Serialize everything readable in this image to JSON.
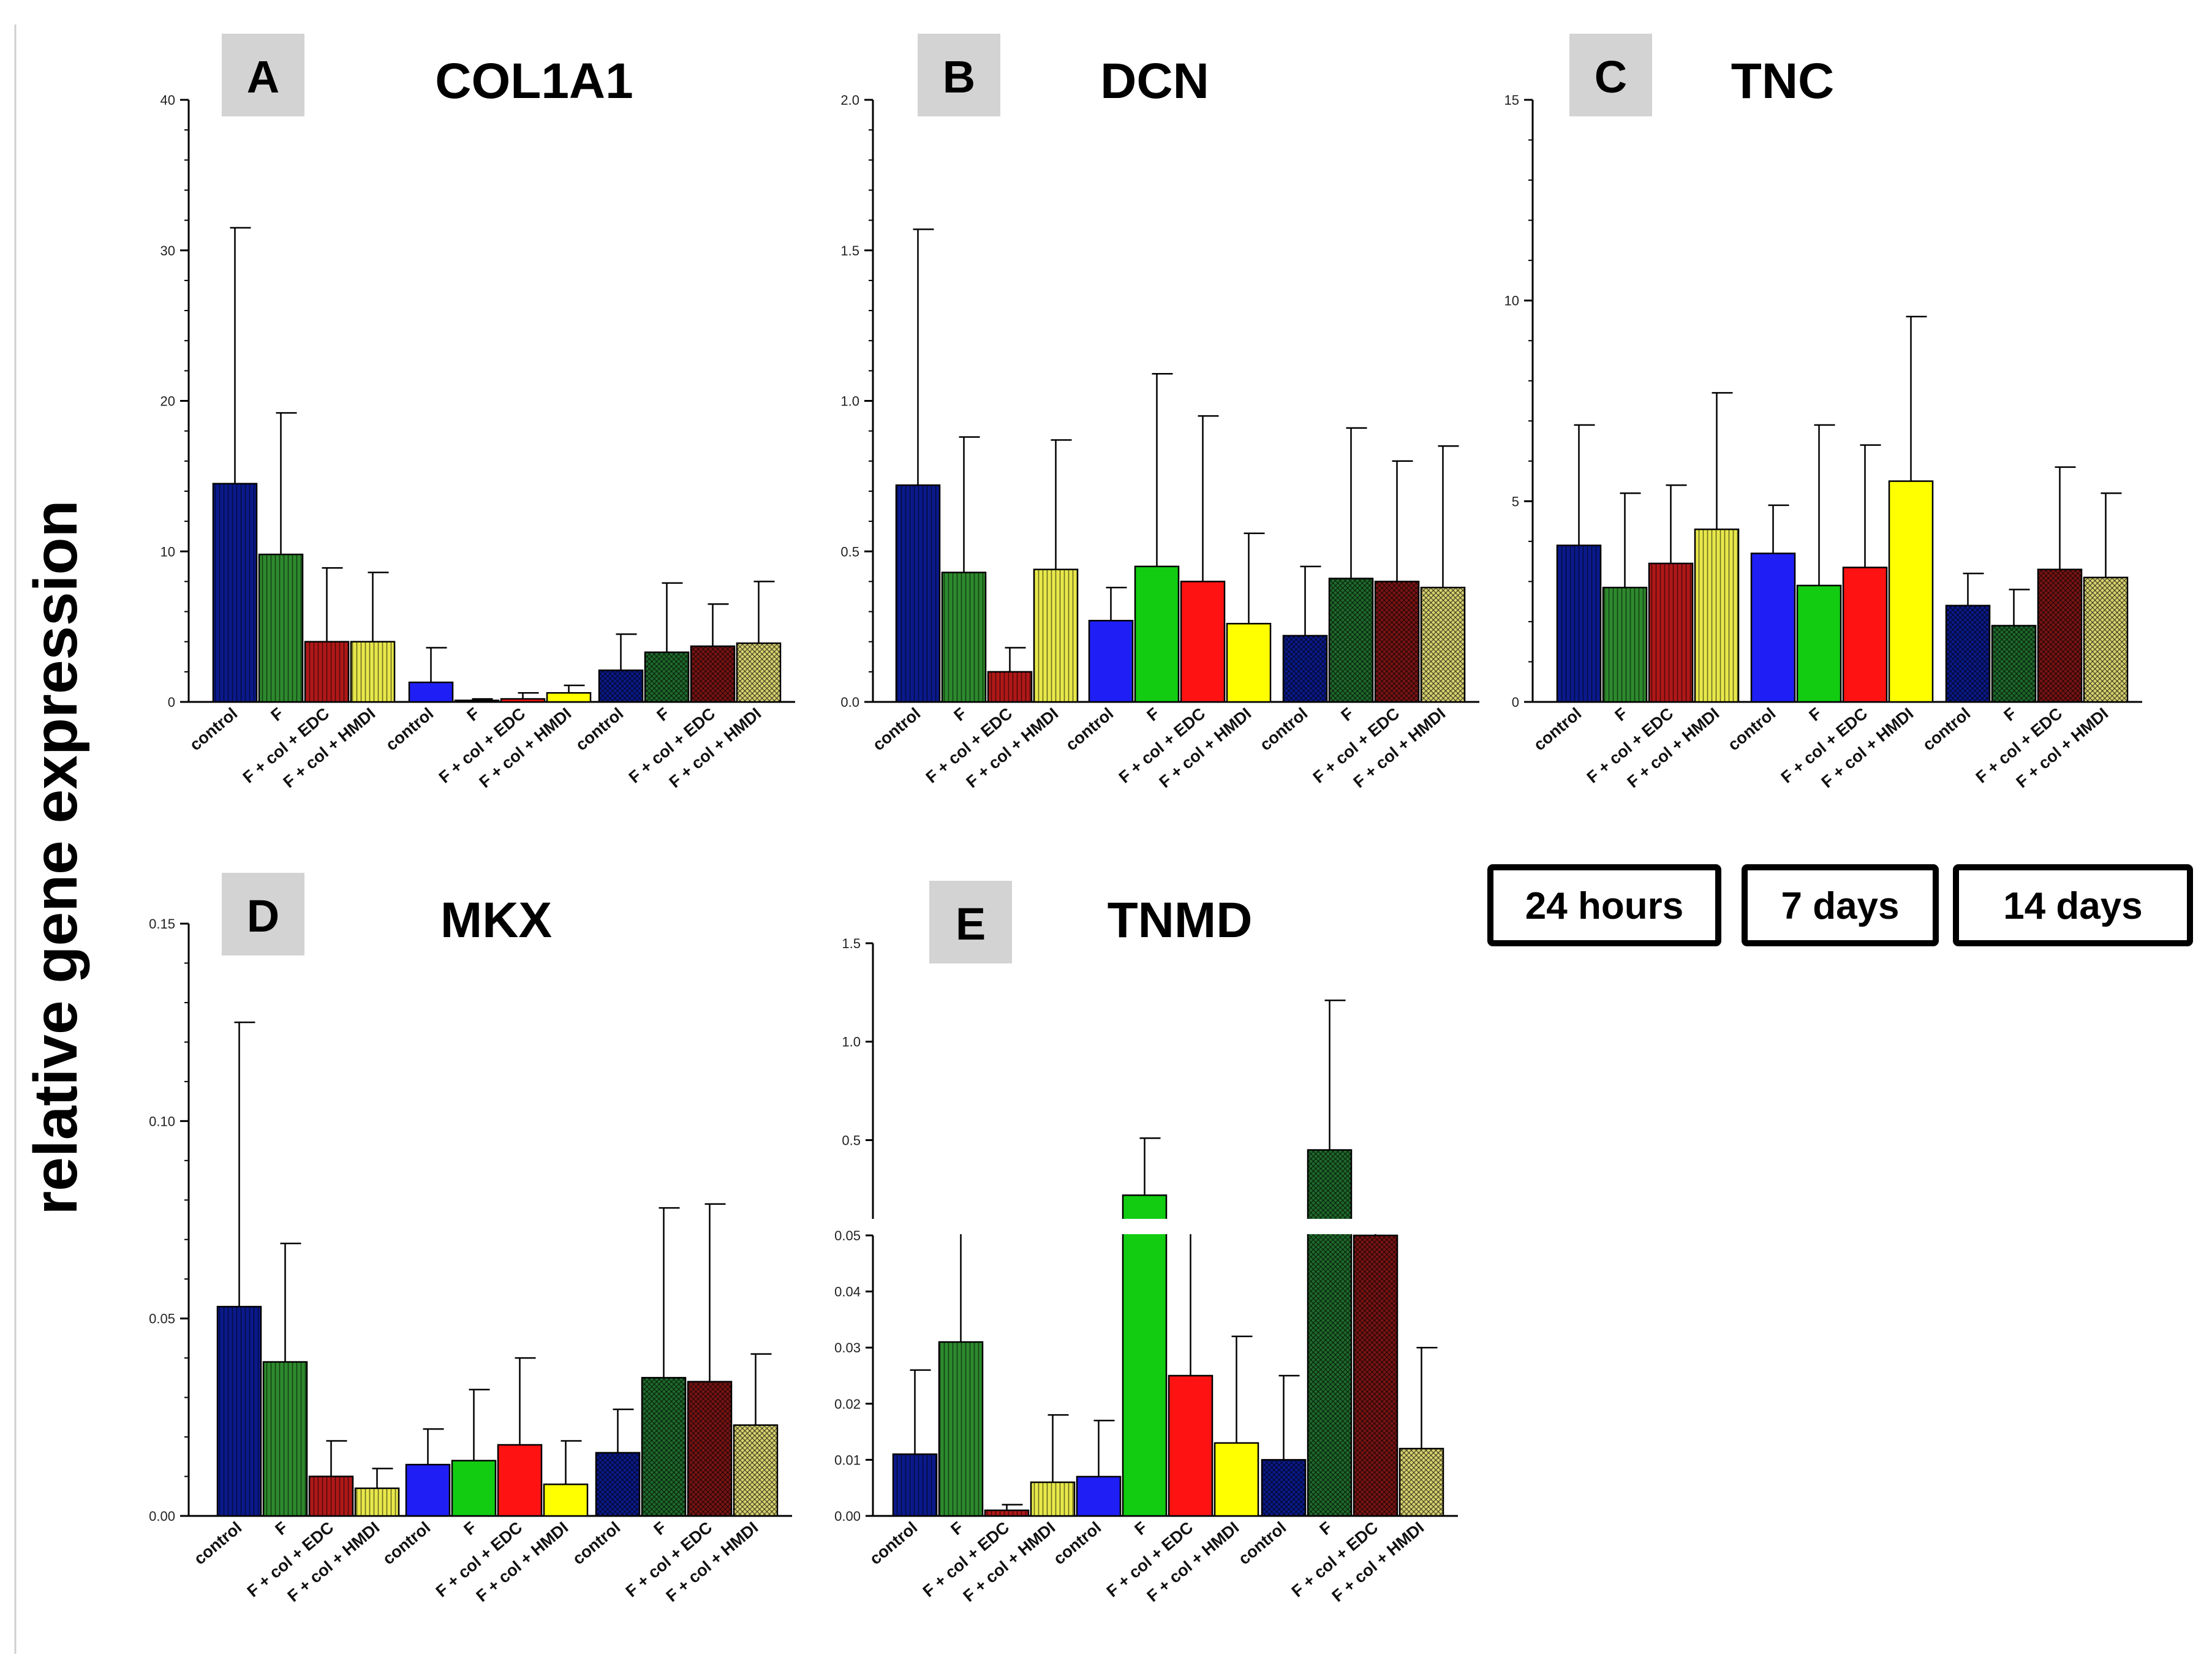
{
  "figure": {
    "ylabel": "relative gene expression",
    "time_legend": [
      "24 hours",
      "7 days",
      "14 days"
    ]
  },
  "colors": {
    "control": "#0a1a8c",
    "F": "#2d8a2d",
    "EDC": "#b01818",
    "HMDI": "#e8e84a",
    "control_7d": "#1f1ff5",
    "F_7d": "#11cc11",
    "EDC_7d": "#ff1212",
    "HMDI_7d": "#ffff00",
    "control_14d": "#0a1a8c",
    "F_14d": "#1f6b2c",
    "EDC_14d": "#7a1414",
    "HMDI_14d": "#d9d370",
    "legend_box": "#000000",
    "panel_tag": "#d3d3d3"
  },
  "chart_data": [
    {
      "type": "bar",
      "panel": "A",
      "title": "COL1A1",
      "groups": [
        "24 hours",
        "7 days",
        "14 days"
      ],
      "categories": [
        "control",
        "F",
        "F + col + EDC",
        "F + col + HMDI"
      ],
      "values": [
        [
          14.5,
          9.8,
          4.0,
          4.0
        ],
        [
          1.3,
          0.1,
          0.2,
          0.6
        ],
        [
          2.1,
          3.3,
          3.7,
          3.9
        ]
      ],
      "errors": [
        [
          31.5,
          19.2,
          8.9,
          8.6
        ],
        [
          3.6,
          0.2,
          0.6,
          1.1
        ],
        [
          4.5,
          7.9,
          6.5,
          8.0
        ]
      ],
      "ylim": [
        0,
        40
      ],
      "yticks": [
        "0",
        "10",
        "20",
        "30",
        "40"
      ]
    },
    {
      "type": "bar",
      "panel": "B",
      "title": "DCN",
      "groups": [
        "24 hours",
        "7 days",
        "14 days"
      ],
      "categories": [
        "control",
        "F",
        "F + col + EDC",
        "F + col + HMDI"
      ],
      "values": [
        [
          0.72,
          0.43,
          0.1,
          0.44
        ],
        [
          0.27,
          0.45,
          0.4,
          0.26
        ],
        [
          0.22,
          0.41,
          0.4,
          0.38
        ]
      ],
      "errors": [
        [
          1.57,
          0.88,
          0.18,
          0.87
        ],
        [
          0.38,
          1.09,
          0.95,
          0.56
        ],
        [
          0.45,
          0.91,
          0.8,
          0.85
        ]
      ],
      "ylim": [
        0,
        2.0
      ],
      "yticks": [
        "0.0",
        "0.5",
        "1.0",
        "1.5",
        "2.0"
      ]
    },
    {
      "type": "bar",
      "panel": "C",
      "title": "TNC",
      "groups": [
        "24 hours",
        "7 days",
        "14 days"
      ],
      "categories": [
        "control",
        "F",
        "F + col + EDC",
        "F + col + HMDI"
      ],
      "values": [
        [
          3.9,
          2.85,
          3.45,
          4.3
        ],
        [
          3.7,
          2.9,
          3.35,
          5.5
        ],
        [
          2.4,
          1.9,
          3.3,
          3.1
        ]
      ],
      "errors": [
        [
          6.9,
          5.2,
          5.4,
          7.7
        ],
        [
          4.9,
          6.9,
          6.4,
          9.6
        ],
        [
          3.2,
          2.8,
          5.85,
          5.2
        ]
      ],
      "ylim": [
        0,
        15
      ],
      "yticks": [
        "0",
        "5",
        "10",
        "15"
      ]
    },
    {
      "type": "bar",
      "panel": "D",
      "title": "MKX",
      "groups": [
        "24 hours",
        "7 days",
        "14 days"
      ],
      "categories": [
        "control",
        "F",
        "F + col + EDC",
        "F + col + HMDI"
      ],
      "values": [
        [
          0.053,
          0.039,
          0.01,
          0.007
        ],
        [
          0.013,
          0.014,
          0.018,
          0.008
        ],
        [
          0.016,
          0.035,
          0.034,
          0.023
        ]
      ],
      "errors": [
        [
          0.125,
          0.069,
          0.019,
          0.012
        ],
        [
          0.022,
          0.032,
          0.04,
          0.019
        ],
        [
          0.027,
          0.078,
          0.079,
          0.041
        ]
      ],
      "ylim": [
        0,
        0.15
      ],
      "yticks": [
        "0.00",
        "0.05",
        "0.10",
        "0.15"
      ]
    },
    {
      "type": "bar",
      "panel": "E",
      "title": "TNMD",
      "groups": [
        "24 hours",
        "7 days",
        "14 days"
      ],
      "categories": [
        "control",
        "F",
        "F + col + EDC",
        "F + col + HMDI"
      ],
      "values": [
        [
          0.011,
          0.031,
          0.001,
          0.006
        ],
        [
          0.007,
          0.22,
          0.025,
          0.013
        ],
        [
          0.01,
          0.45,
          0.05,
          0.012
        ]
      ],
      "errors": [
        [
          0.026,
          0.06,
          0.002,
          0.018
        ],
        [
          0.017,
          0.51,
          0.057,
          0.032
        ],
        [
          0.025,
          1.21,
          0.09,
          0.03
        ]
      ],
      "broken_axis": {
        "lower": [
          0,
          0.05
        ],
        "upper": [
          0.1,
          1.5
        ]
      },
      "yticks_lower": [
        "0.00",
        "0.01",
        "0.02",
        "0.03",
        "0.04",
        "0.05"
      ],
      "yticks_upper": [
        "0.5",
        "1.0",
        "1.5"
      ]
    }
  ]
}
